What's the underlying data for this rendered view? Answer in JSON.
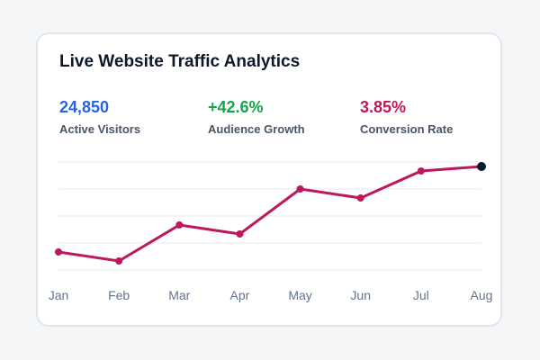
{
  "title": "Live Website Traffic Analytics",
  "kpis": [
    {
      "value": "24,850",
      "label": "Active Visitors",
      "color": "#2563eb"
    },
    {
      "value": "+42.6%",
      "label": "Audience Growth",
      "color": "#16a34a"
    },
    {
      "value": "3.85%",
      "label": "Conversion Rate",
      "color": "#be185d"
    }
  ],
  "chart_data": {
    "type": "line",
    "categories": [
      "Jan",
      "Feb",
      "Mar",
      "Apr",
      "May",
      "Jun",
      "Jul",
      "Aug"
    ],
    "series": [
      {
        "values": [
          2,
          1,
          5,
          4,
          9,
          8,
          11,
          11.5
        ],
        "color": "#be185d"
      }
    ],
    "ylim": [
      0,
      12
    ],
    "grid": true,
    "last_point_color": "#0f172a",
    "gridline_color": "#e5e7eb"
  }
}
